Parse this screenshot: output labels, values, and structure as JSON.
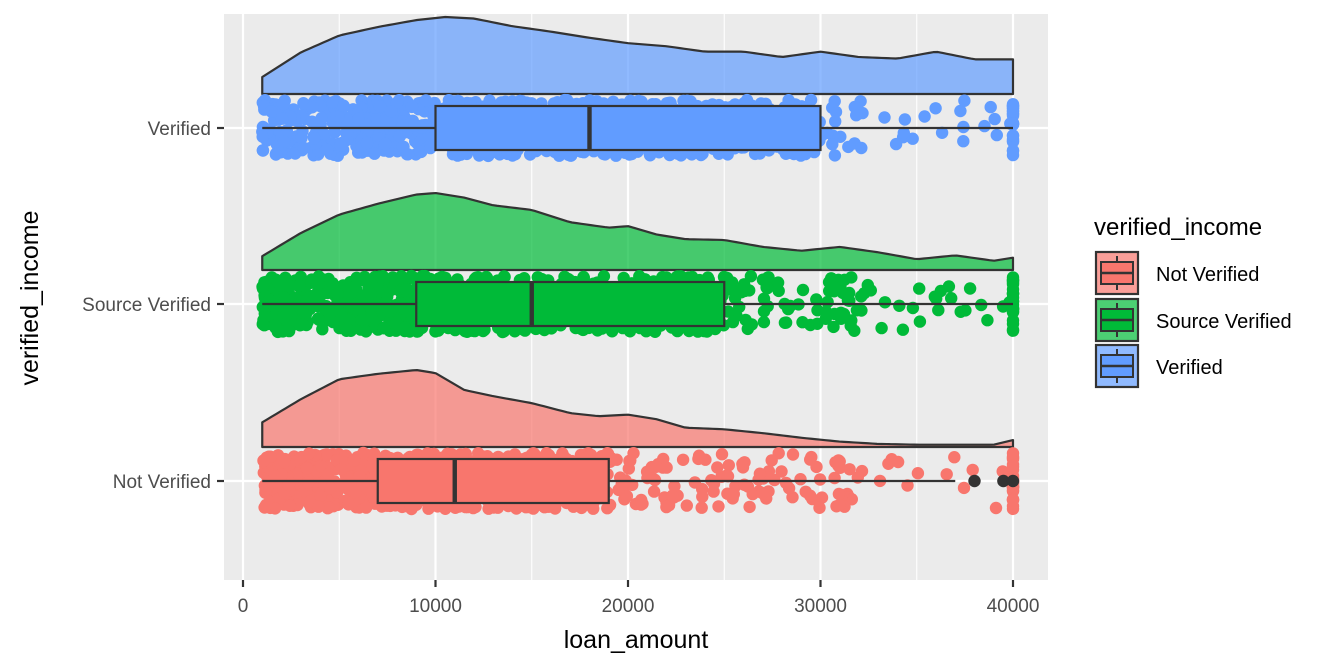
{
  "chart_data": {
    "type": "raincloud",
    "xlabel": "loan_amount",
    "ylabel": "verified_income",
    "xlim": [
      -1000,
      41500
    ],
    "x_ticks": [
      0,
      10000,
      20000,
      30000,
      40000
    ],
    "x_tick_labels": [
      "0",
      "10000",
      "20000",
      "30000",
      "40000"
    ],
    "categories": [
      "Not Verified",
      "Source Verified",
      "Verified"
    ],
    "grid": true,
    "legend": {
      "title": "verified_income",
      "position": "right",
      "entries": [
        "Not Verified",
        "Source Verified",
        "Verified"
      ]
    },
    "series": [
      {
        "name": "Not Verified",
        "color": "#F8766D",
        "box": {
          "whisker_low": 1000,
          "q1": 7000,
          "median": 11000,
          "q3": 19000,
          "whisker_high": 37000
        },
        "outliers": [
          38000,
          39500,
          40000
        ],
        "density": {
          "x": [
            1000,
            3000,
            5000,
            7000,
            9000,
            10000,
            11500,
            13000,
            15000,
            17000,
            18500,
            20000,
            21500,
            23000,
            25000,
            27000,
            29000,
            31000,
            33000,
            35000,
            37000,
            39000,
            40000
          ],
          "y": [
            0.32,
            0.62,
            0.88,
            0.95,
            1.0,
            0.96,
            0.74,
            0.66,
            0.57,
            0.44,
            0.4,
            0.42,
            0.36,
            0.25,
            0.23,
            0.18,
            0.12,
            0.07,
            0.04,
            0.03,
            0.03,
            0.03,
            0.09
          ]
        },
        "jitter_range": [
          1000,
          40000
        ],
        "jitter_density": 0.92
      },
      {
        "name": "Source Verified",
        "color": "#00BA38",
        "box": {
          "whisker_low": 1000,
          "q1": 9000,
          "median": 15000,
          "q3": 25000,
          "whisker_high": 40000
        },
        "outliers": [],
        "density": {
          "x": [
            1000,
            3000,
            5000,
            7000,
            9000,
            10000,
            11500,
            13000,
            15000,
            17000,
            19000,
            20000,
            21500,
            23000,
            25000,
            27000,
            29000,
            31000,
            33000,
            35000,
            37000,
            39000,
            40000
          ],
          "y": [
            0.18,
            0.48,
            0.72,
            0.86,
            0.98,
            1.0,
            0.94,
            0.84,
            0.78,
            0.62,
            0.55,
            0.57,
            0.46,
            0.4,
            0.39,
            0.3,
            0.25,
            0.3,
            0.23,
            0.14,
            0.19,
            0.12,
            0.16
          ]
        },
        "jitter_range": [
          1000,
          40000
        ],
        "jitter_density": 1.0
      },
      {
        "name": "Verified",
        "color": "#619CFF",
        "box": {
          "whisker_low": 1000,
          "q1": 10000,
          "median": 18000,
          "q3": 30000,
          "whisker_high": 40000
        },
        "outliers": [],
        "density": {
          "x": [
            1000,
            3000,
            5000,
            7000,
            9000,
            10500,
            12000,
            14000,
            16000,
            18000,
            20000,
            22000,
            24000,
            26000,
            28000,
            30000,
            32000,
            34000,
            36000,
            38000,
            40000
          ],
          "y": [
            0.22,
            0.54,
            0.76,
            0.87,
            0.96,
            1.0,
            0.98,
            0.88,
            0.81,
            0.73,
            0.66,
            0.62,
            0.55,
            0.55,
            0.48,
            0.55,
            0.48,
            0.46,
            0.55,
            0.45,
            0.45
          ]
        },
        "jitter_range": [
          1000,
          40000
        ],
        "jitter_density": 0.78
      }
    ]
  }
}
